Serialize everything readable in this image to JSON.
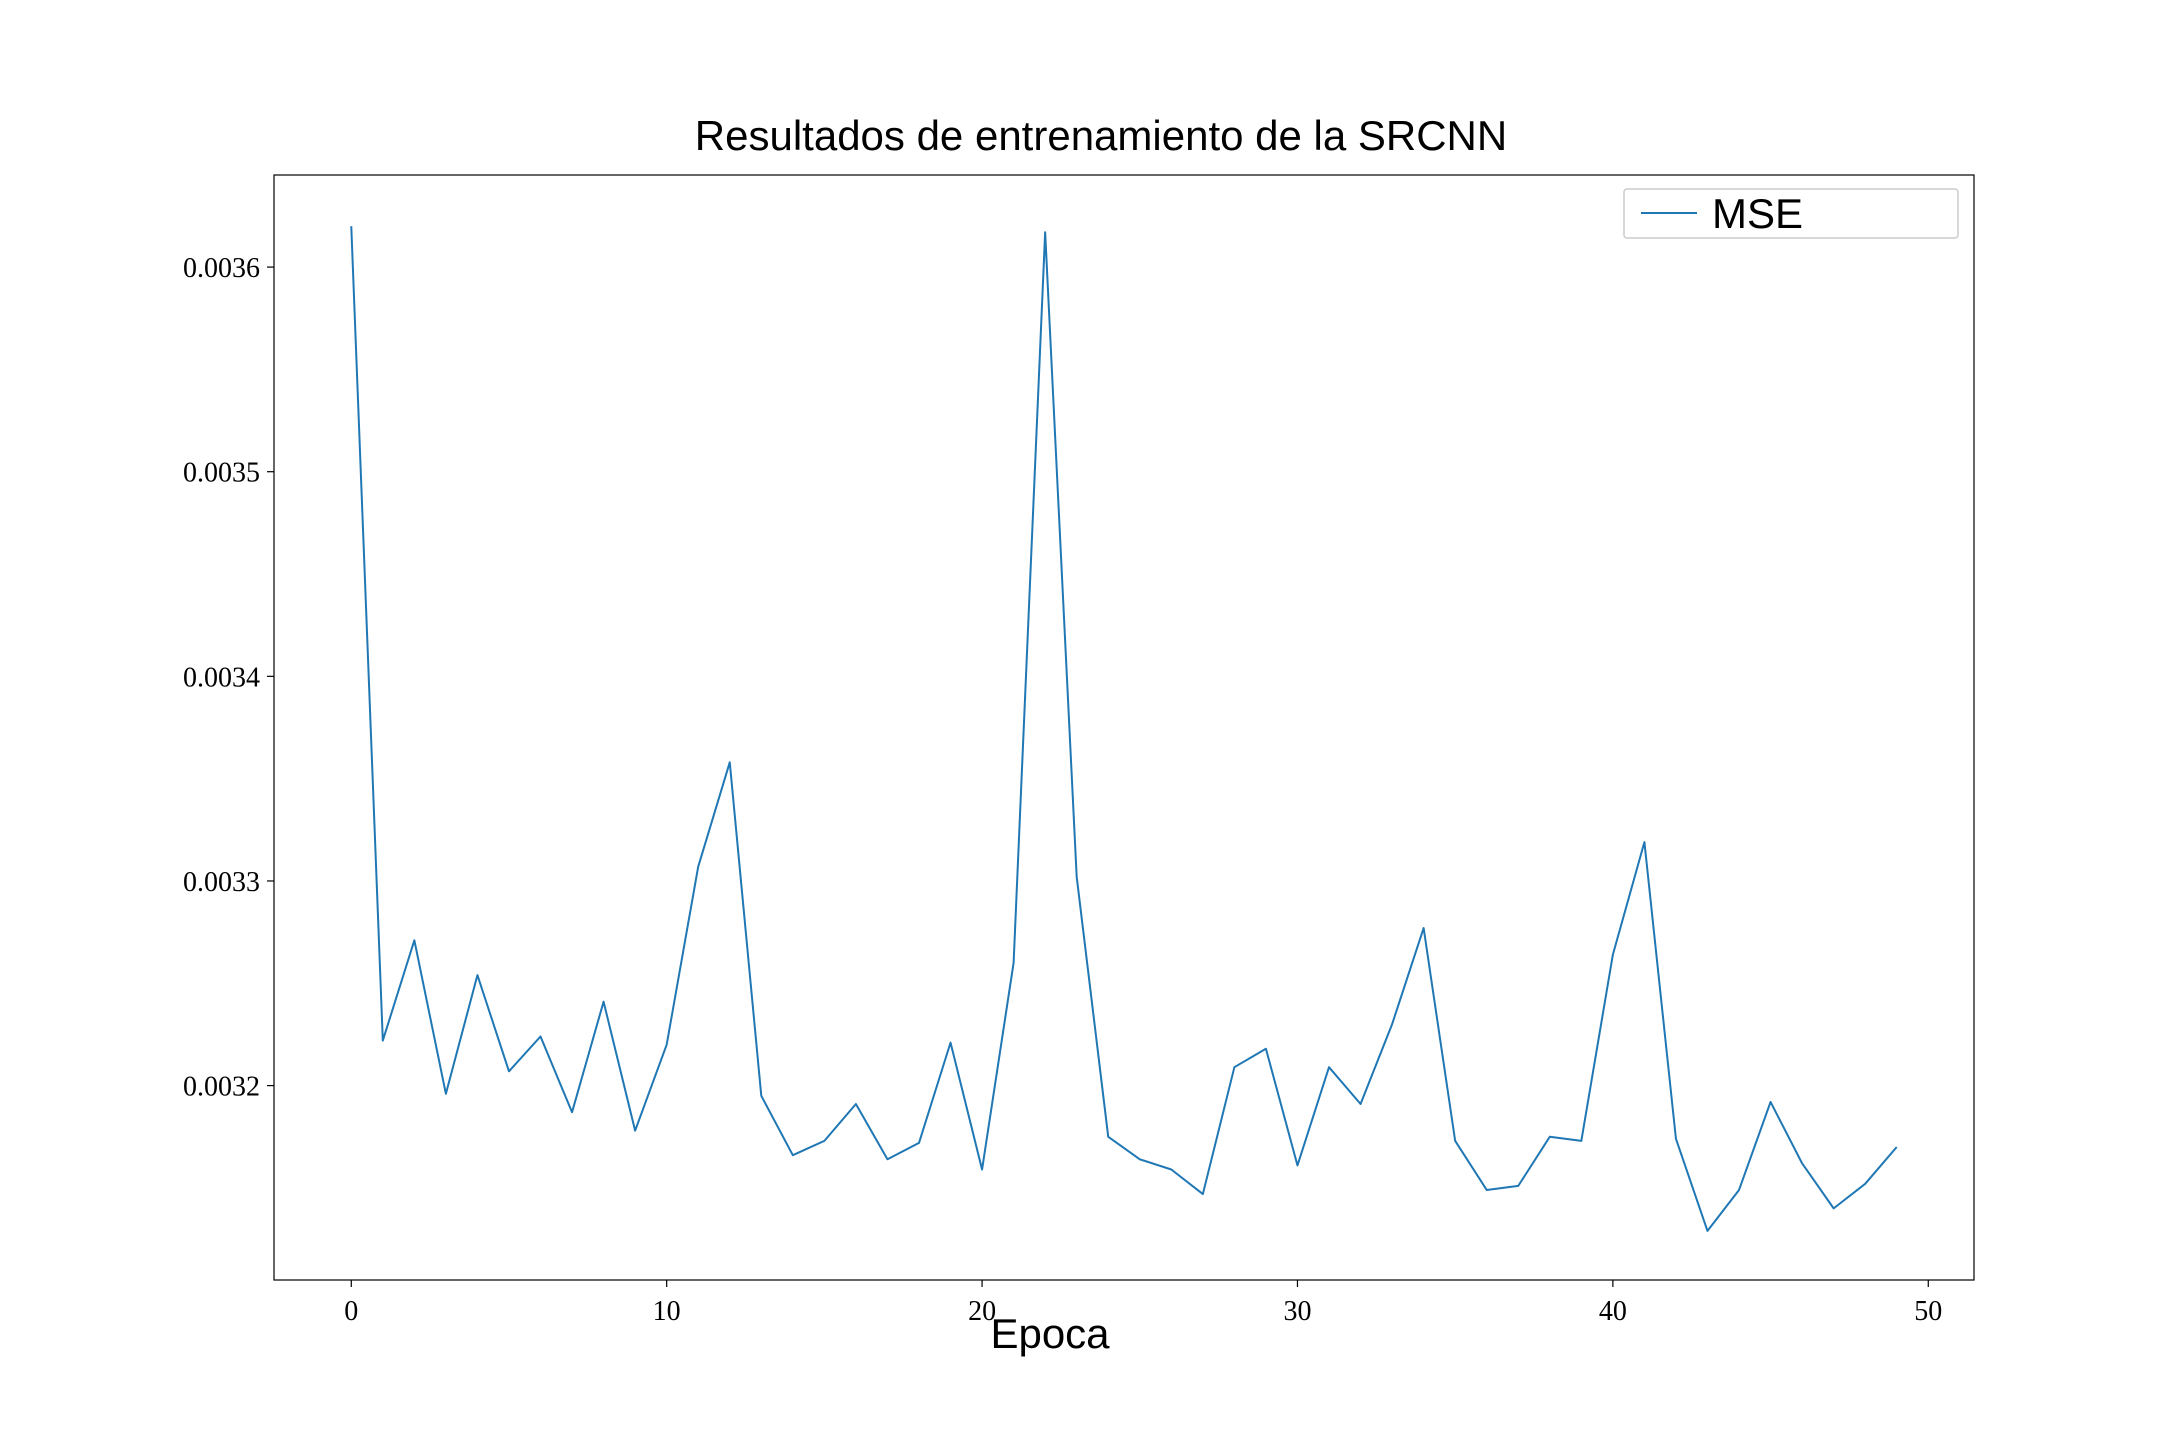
{
  "chart_data": {
    "type": "line",
    "title": "Resultados de entrenamiento de la SRCNN",
    "xlabel": "Epoca",
    "ylabel": "",
    "xlim": [
      -2.45,
      51.45
    ],
    "ylim": [
      0.003105,
      0.003645
    ],
    "x_ticks": [
      0,
      10,
      20,
      30,
      40,
      50
    ],
    "y_ticks": [
      0.0032,
      0.0033,
      0.0034,
      0.0035,
      0.0036
    ],
    "x_tick_labels": [
      "0",
      "10",
      "20",
      "30",
      "40",
      "50"
    ],
    "y_tick_labels": [
      "0.0032",
      "0.0033",
      "0.0034",
      "0.0035",
      "0.0036"
    ],
    "grid": false,
    "legend_position": "top-right",
    "series": [
      {
        "name": "MSE",
        "color": "#1f77b4",
        "x": [
          0,
          1,
          2,
          3,
          4,
          5,
          6,
          7,
          8,
          9,
          10,
          11,
          12,
          13,
          14,
          15,
          16,
          17,
          18,
          19,
          20,
          21,
          22,
          23,
          24,
          25,
          26,
          27,
          28,
          29,
          30,
          31,
          32,
          33,
          34,
          35,
          36,
          37,
          38,
          39,
          40,
          41,
          42,
          43,
          44,
          45,
          46,
          47,
          48,
          49
        ],
        "y": [
          0.00362,
          0.003222,
          0.003271,
          0.003196,
          0.003254,
          0.003207,
          0.003224,
          0.003187,
          0.003241,
          0.003178,
          0.00322,
          0.003307,
          0.003358,
          0.003195,
          0.003166,
          0.003173,
          0.003191,
          0.003164,
          0.003172,
          0.003221,
          0.003159,
          0.00326,
          0.003617,
          0.003302,
          0.003175,
          0.003164,
          0.003159,
          0.003147,
          0.003209,
          0.003218,
          0.003161,
          0.003209,
          0.003191,
          0.00323,
          0.003277,
          0.003173,
          0.003149,
          0.003151,
          0.003175,
          0.003173,
          0.003264,
          0.003319,
          0.003174,
          0.003129,
          0.003149,
          0.003192,
          0.003162,
          0.00314,
          0.003152,
          0.00317
        ]
      }
    ]
  }
}
